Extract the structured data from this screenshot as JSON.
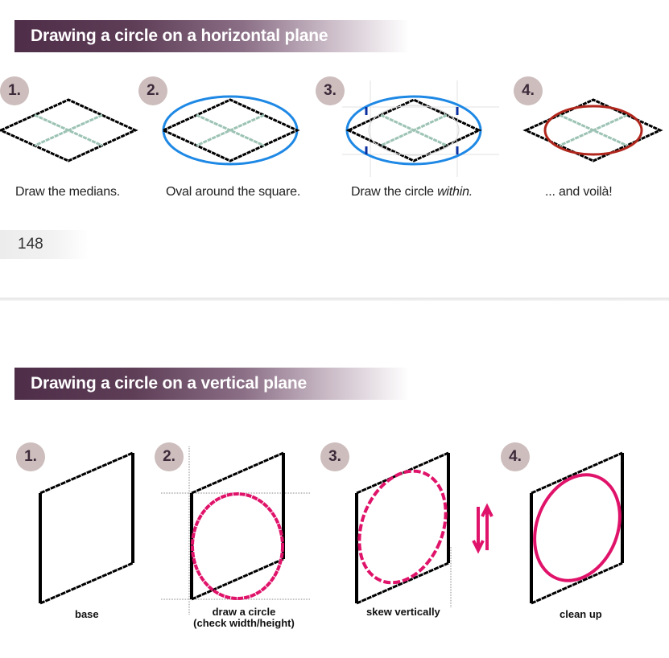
{
  "section1": {
    "title": "Drawing a circle on a horizontal plane",
    "steps": [
      {
        "num": "1.",
        "caption": "Draw the medians."
      },
      {
        "num": "2.",
        "caption": "Oval around the square."
      },
      {
        "num": "3.",
        "caption_prefix": "Draw the circle ",
        "caption_emphasis": "within."
      },
      {
        "num": "4.",
        "caption": "... and voilà!"
      }
    ]
  },
  "page_number": "148",
  "section2": {
    "title": "Drawing a circle on a vertical plane",
    "steps": [
      {
        "num": "1.",
        "caption": "base"
      },
      {
        "num": "2.",
        "caption_line1": "draw a circle",
        "caption_line2": "(check width/height)"
      },
      {
        "num": "3.",
        "caption": "skew vertically"
      },
      {
        "num": "4.",
        "caption": "clean up"
      }
    ]
  },
  "colors": {
    "banner": "#4e2d48",
    "badge": "#cdbdbd",
    "outline": "#000000",
    "medians": "#9cc3b4",
    "oval": "#1e88e5",
    "corner_marks": "#0b2f9e",
    "final_circle": "#b0261c",
    "vertical_circle": "#e0136a",
    "guide_lines": "#888888"
  }
}
